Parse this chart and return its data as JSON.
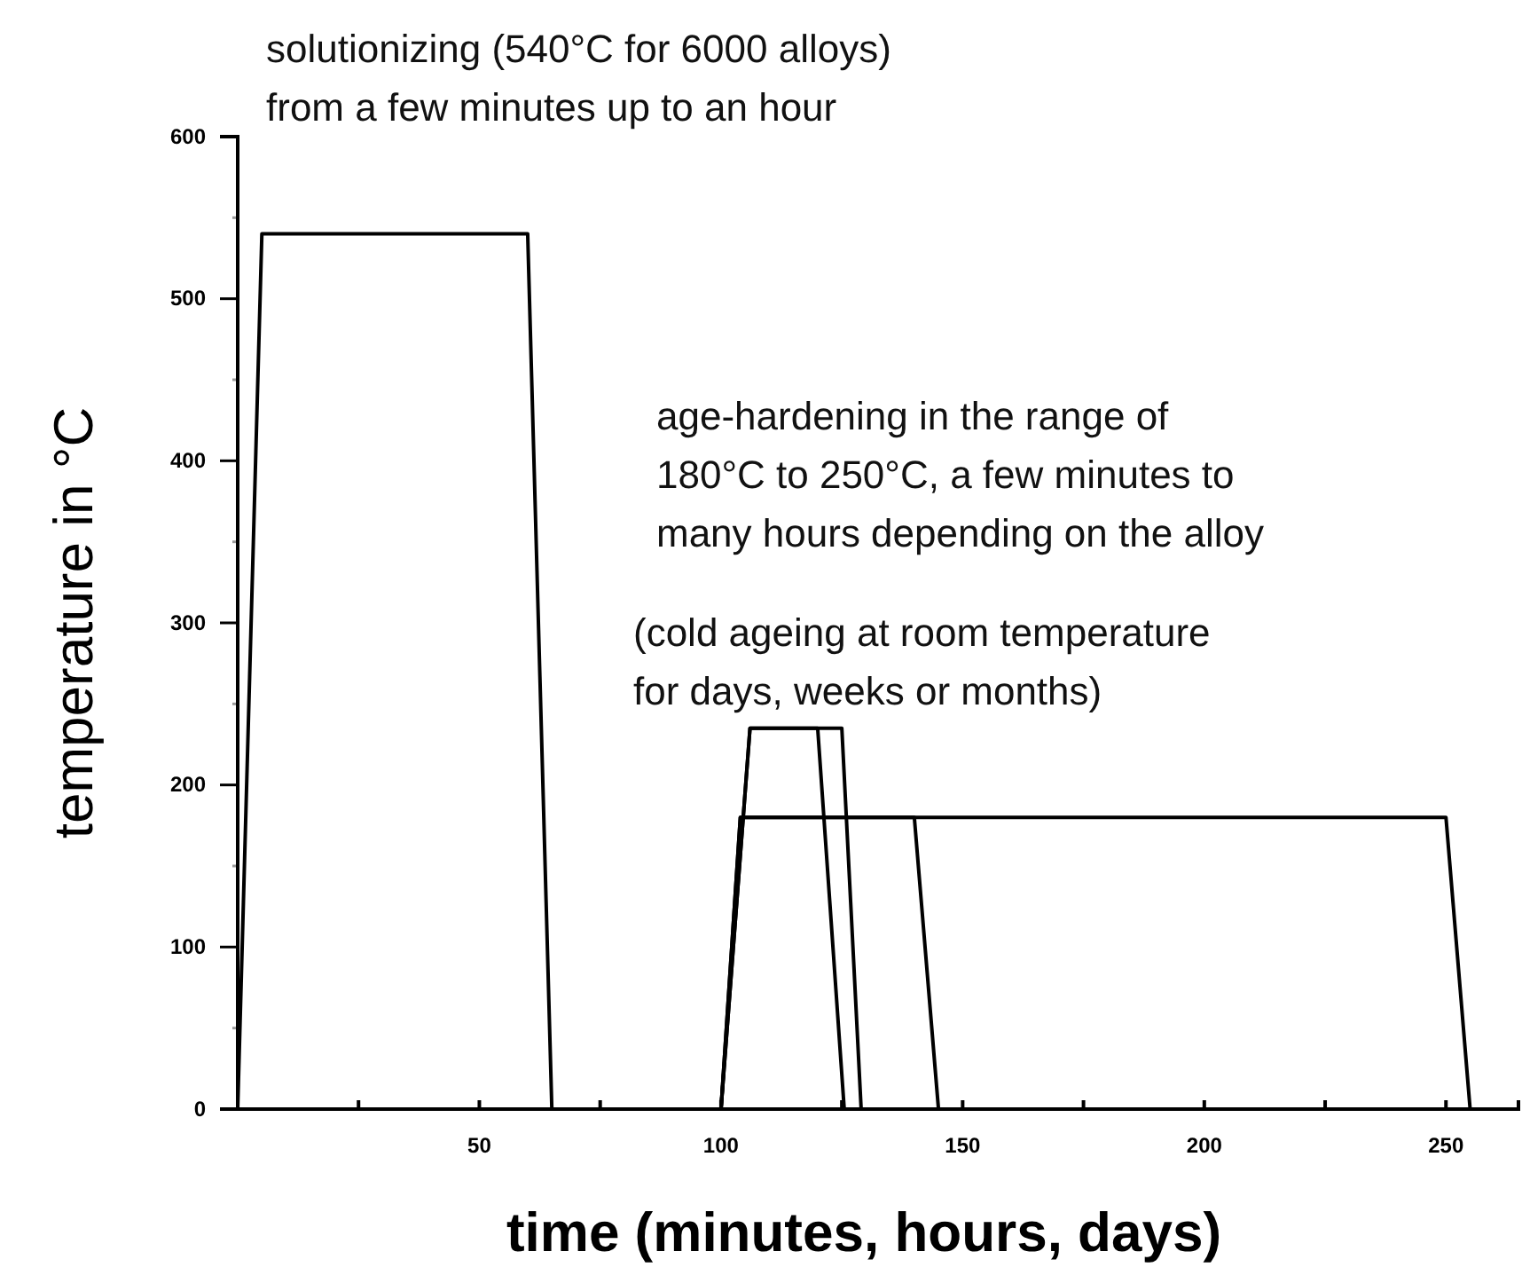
{
  "chart_data": {
    "type": "line",
    "xlabel": "time (minutes, hours, days)",
    "ylabel": "temperature in °C",
    "annotations": [
      "solutionizing (540°C for 6000 alloys)\nfrom a few minutes up to an hour",
      "age-hardening in the range of\n180°C to 250°C, a few minutes to\nmany hours depending on the alloy",
      "(cold ageing at room temperature\nfor days, weeks or months)"
    ],
    "series": [
      {
        "color": "#000000",
        "x": [
          0,
          5,
          60,
          65
        ],
        "values": [
          0,
          540,
          540,
          0
        ]
      },
      {
        "color": "#000000",
        "x": [
          100,
          106,
          125,
          129
        ],
        "values": [
          0,
          235,
          235,
          0
        ]
      },
      {
        "color": "#000000",
        "x": [
          100,
          106,
          120,
          125.5
        ],
        "values": [
          0,
          235,
          235,
          0
        ]
      },
      {
        "color": "#000000",
        "x": [
          100,
          104,
          140,
          145
        ],
        "values": [
          0,
          180,
          180,
          0
        ]
      },
      {
        "color": "#000000",
        "x": [
          100,
          104,
          250,
          255
        ],
        "values": [
          0,
          180,
          180,
          0
        ]
      }
    ],
    "xlim": [
      0,
      265
    ],
    "ylim": [
      0,
      600
    ],
    "xticks": [
      {
        "value": 25,
        "label": null
      },
      50,
      {
        "value": 75,
        "label": null
      },
      100,
      {
        "value": 125,
        "label": null
      },
      150,
      {
        "value": 175,
        "label": null
      },
      200,
      {
        "value": 225,
        "label": null
      },
      250
    ],
    "yticks": [
      0,
      {
        "value": 50,
        "label": null
      },
      100,
      {
        "value": 150,
        "label": null
      },
      200,
      {
        "value": 250,
        "label": null
      },
      300,
      {
        "value": 350,
        "label": null
      },
      400,
      {
        "value": 450,
        "label": null
      },
      500,
      {
        "value": 550,
        "label": null
      },
      600
    ],
    "grid": false,
    "marker": "none",
    "line_style": "solid"
  }
}
